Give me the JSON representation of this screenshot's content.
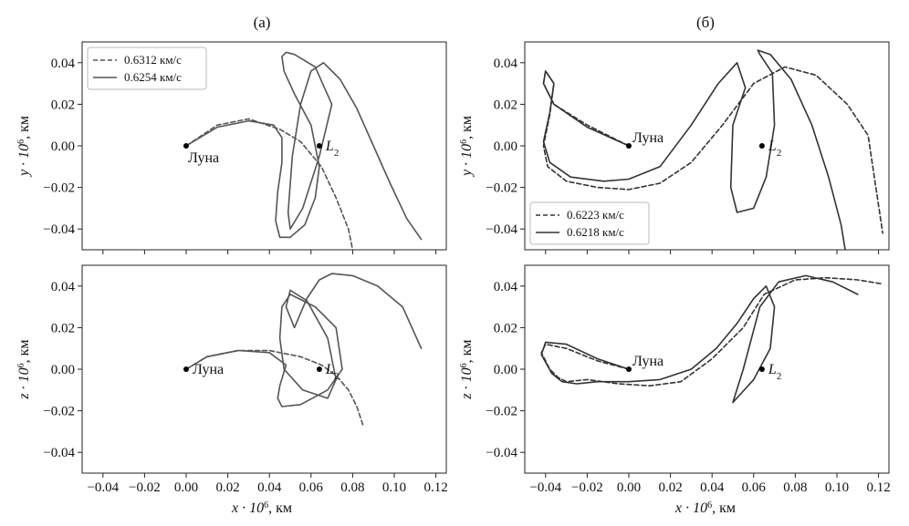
{
  "figure": {
    "col_titles": [
      "(а)",
      "(б)"
    ],
    "xlabel_main": "x · 10",
    "xlabel_sup": "6",
    "xlabel_unit": ", км",
    "ylabel_main": "y · 10",
    "ylabel_sup": "6",
    "ylabel_unit": ", км",
    "zlabel_main": "z · 10",
    "zlabel_sup": "6",
    "zlabel_unit": ", км"
  },
  "chart_data": [
    {
      "id": "a-xy",
      "type": "line",
      "title": "(а)",
      "xlim": [
        -0.05,
        0.125
      ],
      "ylim": [
        -0.05,
        0.05
      ],
      "xticks": [
        -0.04,
        -0.02,
        0.0,
        0.02,
        0.04,
        0.06,
        0.08,
        0.1,
        0.12
      ],
      "yticks": [
        -0.04,
        -0.02,
        0.0,
        0.02,
        0.04
      ],
      "ytick_labels": [
        "−0.04",
        "−0.02",
        "0.00",
        "0.02",
        "0.04"
      ],
      "show_xtick_labels": false,
      "legend": "top-left",
      "points": [
        {
          "name": "moon",
          "label": "Луна",
          "x": 0.0,
          "y": 0.0,
          "label_pos": "below"
        },
        {
          "name": "l2",
          "label_main": "L",
          "label_sub": "2",
          "x": 0.064,
          "y": 0.0,
          "label_pos": "right"
        }
      ],
      "series": [
        {
          "name": "0.6312 км/с",
          "style": "dashed",
          "color": "#555555",
          "x": [
            0.0,
            0.015,
            0.03,
            0.045,
            0.055,
            0.065,
            0.072,
            0.078,
            0.08
          ],
          "y": [
            0.0,
            0.01,
            0.013,
            0.008,
            0.002,
            -0.01,
            -0.025,
            -0.04,
            -0.05
          ]
        },
        {
          "name": "0.6254 км/с",
          "style": "solid",
          "color": "#555555",
          "x": [
            0.0,
            0.015,
            0.03,
            0.042,
            0.046,
            0.046,
            0.044,
            0.043,
            0.045,
            0.05,
            0.057,
            0.062,
            0.064,
            0.06,
            0.052,
            0.047,
            0.046,
            0.048,
            0.052,
            0.062,
            0.07,
            0.064,
            0.056,
            0.05,
            0.049,
            0.051,
            0.055,
            0.06,
            0.066,
            0.074,
            0.082,
            0.09,
            0.098,
            0.106,
            0.113
          ],
          "y": [
            0.0,
            0.009,
            0.012,
            0.01,
            0.004,
            -0.008,
            -0.022,
            -0.036,
            -0.044,
            -0.044,
            -0.038,
            -0.025,
            -0.01,
            0.01,
            0.025,
            0.036,
            0.043,
            0.045,
            0.044,
            0.038,
            0.02,
            -0.005,
            -0.03,
            -0.04,
            -0.032,
            -0.005,
            0.02,
            0.036,
            0.04,
            0.032,
            0.018,
            0.0,
            -0.018,
            -0.035,
            -0.045
          ]
        }
      ]
    },
    {
      "id": "b-xy",
      "type": "line",
      "title": "(б)",
      "xlim": [
        -0.05,
        0.125
      ],
      "ylim": [
        -0.05,
        0.05
      ],
      "xticks": [
        -0.04,
        -0.02,
        0.0,
        0.02,
        0.04,
        0.06,
        0.08,
        0.1,
        0.12
      ],
      "yticks": [
        -0.04,
        -0.02,
        0.0,
        0.02,
        0.04
      ],
      "ytick_labels": [
        "−0.04",
        "−0.02",
        "0.00",
        "0.02",
        "0.04"
      ],
      "show_xtick_labels": false,
      "legend": "bottom-left",
      "points": [
        {
          "name": "moon",
          "label": "Луна",
          "x": 0.0,
          "y": 0.0,
          "label_pos": "above-right"
        },
        {
          "name": "l2",
          "label_main": "L",
          "label_sub": "2",
          "x": 0.064,
          "y": 0.0,
          "label_pos": "right"
        }
      ],
      "series": [
        {
          "name": "0.6223 км/с",
          "style": "dashed",
          "color": "#333333",
          "x": [
            0.0,
            -0.02,
            -0.036,
            -0.041,
            -0.04,
            -0.036,
            -0.038,
            -0.041,
            -0.039,
            -0.03,
            -0.015,
            0.0,
            0.015,
            0.03,
            0.045,
            0.06,
            0.075,
            0.09,
            0.105,
            0.115,
            0.122
          ],
          "y": [
            0.0,
            0.01,
            0.02,
            0.03,
            0.036,
            0.03,
            0.015,
            0.0,
            -0.01,
            -0.017,
            -0.02,
            -0.021,
            -0.018,
            -0.008,
            0.01,
            0.03,
            0.038,
            0.034,
            0.02,
            0.005,
            -0.042
          ]
        },
        {
          "name": "0.6218 км/с",
          "style": "solid",
          "color": "#333333",
          "x": [
            0.0,
            -0.02,
            -0.036,
            -0.041,
            -0.04,
            -0.036,
            -0.038,
            -0.041,
            -0.038,
            -0.028,
            -0.012,
            0.0,
            0.015,
            0.03,
            0.043,
            0.052,
            0.056,
            0.05,
            0.049,
            0.052,
            0.06,
            0.066,
            0.07,
            0.069,
            0.063,
            0.062,
            0.068,
            0.078,
            0.088,
            0.096,
            0.102,
            0.104
          ],
          "y": [
            0.0,
            0.009,
            0.02,
            0.03,
            0.036,
            0.03,
            0.016,
            0.002,
            -0.008,
            -0.015,
            -0.017,
            -0.016,
            -0.01,
            0.01,
            0.03,
            0.04,
            0.028,
            0.01,
            -0.02,
            -0.032,
            -0.03,
            -0.015,
            0.01,
            0.035,
            0.044,
            0.046,
            0.044,
            0.032,
            0.01,
            -0.015,
            -0.038,
            -0.05
          ]
        }
      ]
    },
    {
      "id": "a-xz",
      "type": "line",
      "xlim": [
        -0.05,
        0.125
      ],
      "ylim": [
        -0.05,
        0.05
      ],
      "xticks": [
        -0.04,
        -0.02,
        0.0,
        0.02,
        0.04,
        0.06,
        0.08,
        0.1,
        0.12
      ],
      "xtick_labels": [
        "−0.04",
        "−0.02",
        "0.00",
        "0.02",
        "0.04",
        "0.06",
        "0.08",
        "0.10",
        "0.12"
      ],
      "yticks": [
        -0.04,
        -0.02,
        0.0,
        0.02,
        0.04
      ],
      "ytick_labels": [
        "−0.04",
        "−0.02",
        "0.00",
        "0.02",
        "0.04"
      ],
      "show_xtick_labels": true,
      "points": [
        {
          "name": "moon",
          "label": "Луна",
          "x": 0.0,
          "y": 0.0,
          "label_pos": "right"
        },
        {
          "name": "l2",
          "label_main": "L",
          "label_sub": "2",
          "x": 0.064,
          "y": 0.0,
          "label_pos": "right"
        }
      ],
      "series": [
        {
          "name": "0.6312 км/с",
          "style": "dashed",
          "color": "#555555",
          "x": [
            0.0,
            0.01,
            0.025,
            0.04,
            0.055,
            0.065,
            0.072,
            0.078,
            0.082,
            0.085
          ],
          "y": [
            0.0,
            0.006,
            0.009,
            0.009,
            0.006,
            0.002,
            -0.003,
            -0.01,
            -0.018,
            -0.027
          ]
        },
        {
          "name": "0.6254 км/с",
          "style": "solid",
          "color": "#555555",
          "x": [
            0.0,
            0.01,
            0.025,
            0.04,
            0.048,
            0.045,
            0.044,
            0.046,
            0.055,
            0.068,
            0.075,
            0.072,
            0.062,
            0.05,
            0.046,
            0.045,
            0.047,
            0.056,
            0.068,
            0.072,
            0.068,
            0.058,
            0.05,
            0.048,
            0.052,
            0.058,
            0.064,
            0.07,
            0.08,
            0.092,
            0.104,
            0.113
          ],
          "y": [
            0.0,
            0.006,
            0.009,
            0.008,
            0.002,
            -0.008,
            -0.014,
            -0.018,
            -0.017,
            -0.01,
            0.0,
            0.02,
            0.03,
            0.036,
            0.03,
            0.015,
            0.0,
            -0.01,
            -0.014,
            -0.005,
            0.015,
            0.033,
            0.038,
            0.03,
            0.02,
            0.034,
            0.043,
            0.046,
            0.045,
            0.04,
            0.03,
            0.01
          ]
        }
      ]
    },
    {
      "id": "b-xz",
      "type": "line",
      "xlim": [
        -0.05,
        0.125
      ],
      "ylim": [
        -0.05,
        0.05
      ],
      "xticks": [
        -0.04,
        -0.02,
        0.0,
        0.02,
        0.04,
        0.06,
        0.08,
        0.1,
        0.12
      ],
      "xtick_labels": [
        "−0.04",
        "−0.02",
        "0.00",
        "0.02",
        "0.04",
        "0.06",
        "0.08",
        "0.10",
        "0.12"
      ],
      "yticks": [
        -0.04,
        -0.02,
        0.0,
        0.02,
        0.04
      ],
      "ytick_labels": [
        "−0.04",
        "−0.02",
        "0.00",
        "0.02",
        "0.04"
      ],
      "show_xtick_labels": true,
      "points": [
        {
          "name": "moon",
          "label": "Луна",
          "x": 0.0,
          "y": 0.0,
          "label_pos": "above-right"
        },
        {
          "name": "l2",
          "label_main": "L",
          "label_sub": "2",
          "x": 0.064,
          "y": 0.0,
          "label_pos": "right"
        }
      ],
      "series": [
        {
          "name": "0.6223 км/с",
          "style": "dashed",
          "color": "#333333",
          "x": [
            0.0,
            -0.015,
            -0.03,
            -0.04,
            -0.042,
            -0.038,
            -0.034,
            -0.03,
            -0.02,
            -0.005,
            0.01,
            0.025,
            0.04,
            0.055,
            0.065,
            0.08,
            0.095,
            0.11,
            0.122
          ],
          "y": [
            0.0,
            0.004,
            0.01,
            0.012,
            0.008,
            0.0,
            -0.004,
            -0.006,
            -0.005,
            -0.007,
            -0.008,
            -0.006,
            0.005,
            0.02,
            0.036,
            0.043,
            0.044,
            0.043,
            0.041
          ]
        },
        {
          "name": "0.6218 км/с",
          "style": "solid",
          "color": "#333333",
          "x": [
            0.0,
            -0.015,
            -0.03,
            -0.04,
            -0.042,
            -0.037,
            -0.032,
            -0.025,
            -0.015,
            0.0,
            0.015,
            0.03,
            0.042,
            0.052,
            0.06,
            0.066,
            0.07,
            0.068,
            0.06,
            0.05,
            0.055,
            0.063,
            0.072,
            0.085,
            0.098,
            0.11
          ],
          "y": [
            0.0,
            0.005,
            0.012,
            0.013,
            0.007,
            -0.002,
            -0.006,
            -0.007,
            -0.006,
            -0.006,
            -0.005,
            0.0,
            0.01,
            0.022,
            0.034,
            0.04,
            0.03,
            0.01,
            -0.005,
            -0.016,
            0.0,
            0.03,
            0.042,
            0.045,
            0.042,
            0.036
          ]
        }
      ]
    }
  ]
}
